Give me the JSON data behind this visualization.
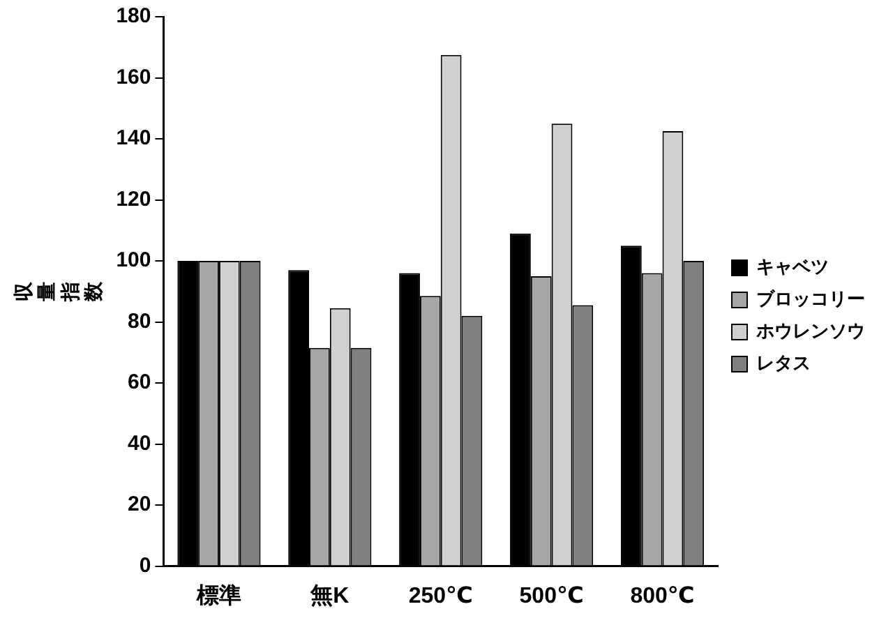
{
  "chart_data": {
    "type": "bar",
    "ylabel": "収量指数",
    "categories": [
      "標準",
      "無K",
      "250℃",
      "500℃",
      "800℃"
    ],
    "series": [
      {
        "name": "キャベツ",
        "color": "#000000",
        "values": [
          100,
          97,
          96,
          109,
          105
        ]
      },
      {
        "name": "ブロッコリー",
        "color": "#a6a6a6",
        "values": [
          100,
          71.5,
          88.5,
          95,
          96
        ]
      },
      {
        "name": "ホウレンソウ",
        "color": "#d0d0d0",
        "values": [
          100,
          84.5,
          167.5,
          145,
          142.5
        ]
      },
      {
        "name": "レタス",
        "color": "#808080",
        "values": [
          100,
          71.5,
          82,
          85.5,
          100
        ]
      }
    ],
    "ylim": [
      0,
      180
    ],
    "yticks": [
      0,
      20,
      40,
      60,
      80,
      100,
      120,
      140,
      160,
      180
    ],
    "grid": false,
    "legend": "right"
  }
}
